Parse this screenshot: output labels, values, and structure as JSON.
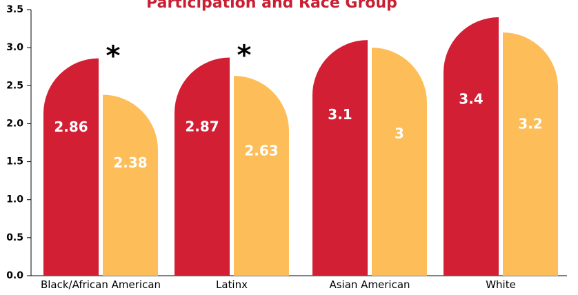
{
  "chart_data": {
    "type": "bar",
    "title": "Participation and Race Group",
    "categories": [
      "Black/African American",
      "Latinx",
      "Asian American",
      "White"
    ],
    "series": [
      {
        "values": [
          2.86,
          2.87,
          3.1,
          3.4
        ],
        "labels": [
          "2.86",
          "2.87",
          "3.1",
          "3.4"
        ],
        "color": "#d21f33"
      },
      {
        "values": [
          2.38,
          2.63,
          3.0,
          3.2
        ],
        "labels": [
          "2.38",
          "2.63",
          "3",
          "3.2"
        ],
        "color": "#fdbd58"
      }
    ],
    "y_ticks": [
      "0.0",
      "0.5",
      "1.0",
      "1.5",
      "2.0",
      "2.5",
      "3.0",
      "3.5"
    ],
    "ylim": [
      0,
      3.5
    ],
    "annotations": [
      {
        "category": "Black/African American",
        "text": "*"
      },
      {
        "category": "Latinx",
        "text": "*"
      }
    ],
    "grid": false,
    "legend": "none"
  }
}
